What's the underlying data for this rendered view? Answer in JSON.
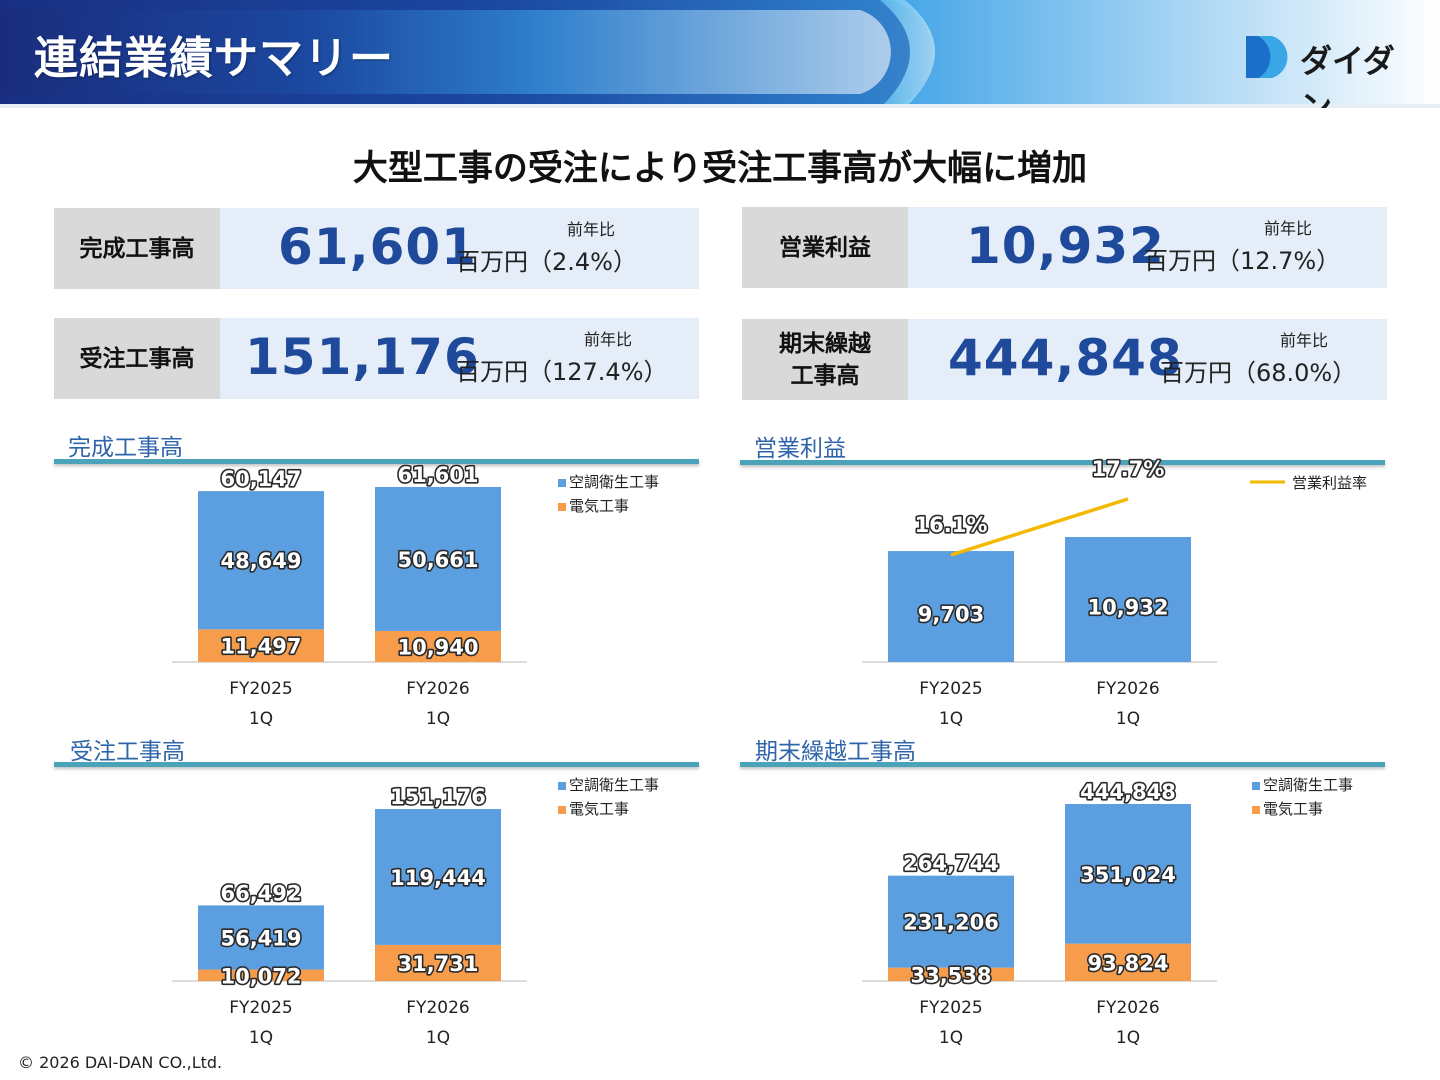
{
  "header": {
    "title": "連結業績サマリー",
    "logo_text": "ダイダン"
  },
  "headline": "大型工事の受注により受注工事高が大幅に増加",
  "kpis": [
    {
      "label": "完成工事高",
      "value": "61,601",
      "unit": "百万円（2.4%）",
      "caption": "前年比"
    },
    {
      "label": "営業利益",
      "value": "10,932",
      "unit": "百万円（12.7%）",
      "caption": "前年比"
    },
    {
      "label": "受注工事高",
      "value": "151,176",
      "unit": "百万円（127.4%）",
      "caption": "前年比"
    },
    {
      "label_line1": "期末繰越",
      "label_line2": "工事高",
      "value": "444,848",
      "unit": "百万円（68.0%）",
      "caption": "前年比"
    }
  ],
  "legend": {
    "aircon": "空調衛生工事",
    "electric": "電気工事",
    "margin": "営業利益率"
  },
  "colors": {
    "aircon": "#5b9fe0",
    "electric": "#f79c4a",
    "line": "#f5b800",
    "title": "#2e64a8",
    "kpi_value": "#1f4a9c"
  },
  "chart_data": [
    {
      "title": "完成工事高",
      "type": "bar",
      "categories": [
        [
          "FY2025",
          "1Q"
        ],
        [
          "FY2026",
          "1Q"
        ]
      ],
      "series": [
        {
          "name": "空調衛生工事",
          "values": [
            48649,
            50661
          ]
        },
        {
          "name": "電気工事",
          "values": [
            11497,
            10940
          ]
        }
      ],
      "totals": [
        60147,
        61601
      ],
      "max": 61601
    },
    {
      "title": "営業利益",
      "type": "bar",
      "categories": [
        [
          "FY2025",
          "1Q"
        ],
        [
          "FY2026",
          "1Q"
        ]
      ],
      "values": [
        9703,
        10932
      ],
      "line_series": {
        "name": "営業利益率",
        "values": [
          16.1,
          17.7
        ],
        "labels": [
          "16.1%",
          "17.7%"
        ]
      },
      "max": 10932
    },
    {
      "title": "受注工事高",
      "type": "bar",
      "categories": [
        [
          "FY2025",
          "1Q"
        ],
        [
          "FY2026",
          "1Q"
        ]
      ],
      "series": [
        {
          "name": "空調衛生工事",
          "values": [
            56419,
            119444
          ]
        },
        {
          "name": "電気工事",
          "values": [
            10072,
            31731
          ]
        }
      ],
      "totals": [
        66492,
        151176
      ],
      "max": 151176
    },
    {
      "title": "期末繰越工事高",
      "type": "bar",
      "categories": [
        [
          "FY2025",
          "1Q"
        ],
        [
          "FY2026",
          "1Q"
        ]
      ],
      "series": [
        {
          "name": "空調衛生工事",
          "values": [
            231206,
            351024
          ]
        },
        {
          "name": "電気工事",
          "values": [
            33538,
            93824
          ]
        }
      ],
      "totals": [
        264744,
        444848
      ],
      "max": 444848
    }
  ],
  "footer": "© 2026 DAI-DAN CO.,Ltd."
}
